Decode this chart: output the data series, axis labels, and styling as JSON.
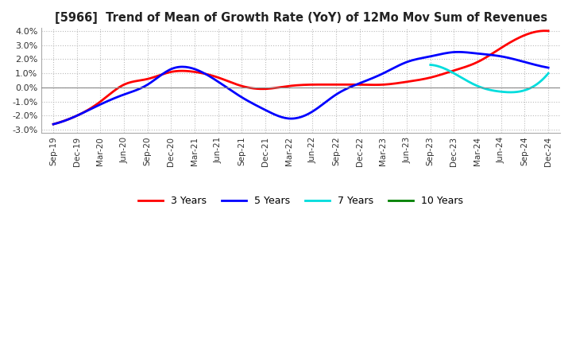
{
  "title": "[5966]  Trend of Mean of Growth Rate (YoY) of 12Mo Mov Sum of Revenues",
  "ylim": [
    -0.032,
    0.042
  ],
  "yticks": [
    -0.03,
    -0.02,
    -0.01,
    0.0,
    0.01,
    0.02,
    0.03,
    0.04
  ],
  "xtick_labels": [
    "Sep-19",
    "Dec-19",
    "Mar-20",
    "Jun-20",
    "Sep-20",
    "Dec-20",
    "Mar-21",
    "Jun-21",
    "Sep-21",
    "Dec-21",
    "Mar-22",
    "Jun-22",
    "Sep-22",
    "Dec-22",
    "Mar-23",
    "Jun-23",
    "Sep-23",
    "Dec-23",
    "Mar-24",
    "Jun-24",
    "Sep-24",
    "Dec-24"
  ],
  "series": {
    "3 Years": {
      "color": "#FF0000",
      "values": [
        -0.026,
        -0.02,
        -0.01,
        0.002,
        0.006,
        0.011,
        0.011,
        0.007,
        0.001,
        -0.001,
        0.001,
        0.002,
        0.002,
        0.002,
        0.002,
        0.004,
        0.007,
        0.012,
        0.018,
        0.028,
        0.037,
        0.04
      ]
    },
    "5 Years": {
      "color": "#0000FF",
      "values": [
        -0.026,
        -0.02,
        -0.012,
        -0.005,
        0.002,
        0.013,
        0.013,
        0.004,
        -0.007,
        -0.016,
        -0.022,
        -0.017,
        -0.005,
        0.003,
        0.01,
        0.018,
        0.022,
        0.025,
        0.024,
        0.022,
        0.018,
        0.014
      ]
    },
    "7 Years": {
      "color": "#00DDDD",
      "values": [
        null,
        null,
        null,
        null,
        null,
        null,
        null,
        null,
        null,
        null,
        null,
        null,
        null,
        null,
        null,
        null,
        0.016,
        0.01,
        0.001,
        -0.003,
        -0.002,
        0.01
      ]
    },
    "10 Years": {
      "color": "#008000",
      "values": [
        null,
        null,
        null,
        null,
        null,
        null,
        null,
        null,
        null,
        null,
        null,
        null,
        null,
        null,
        null,
        null,
        null,
        null,
        null,
        null,
        null,
        null
      ]
    }
  },
  "legend_entries": [
    "3 Years",
    "5 Years",
    "7 Years",
    "10 Years"
  ],
  "background_color": "#ffffff",
  "grid_color": "#bbbbbb",
  "grid_linestyle": "dotted"
}
